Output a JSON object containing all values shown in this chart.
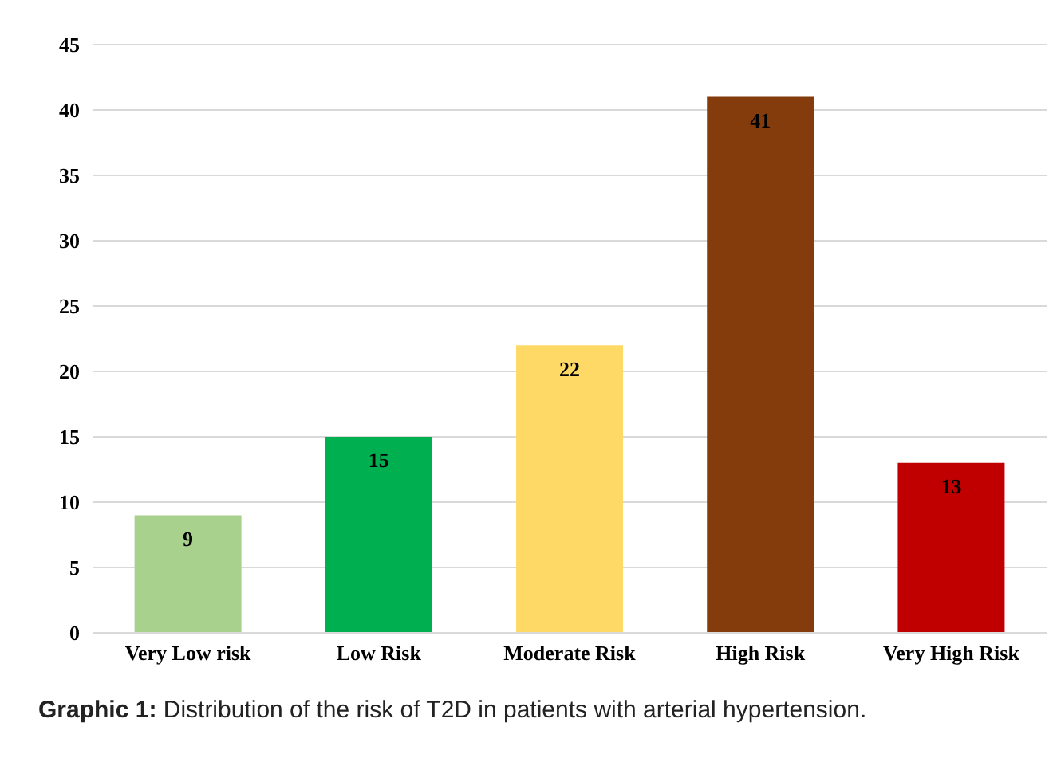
{
  "chart_data": {
    "type": "bar",
    "categories": [
      "Very Low risk",
      "Low Risk",
      "Moderate Risk",
      "High Risk",
      "Very High Risk"
    ],
    "values": [
      9,
      15,
      22,
      41,
      13
    ],
    "colors": [
      "#a9d18e",
      "#00b050",
      "#ffd966",
      "#843c0c",
      "#c00000"
    ],
    "ylim": [
      0,
      45
    ],
    "yticks": [
      0,
      5,
      10,
      15,
      20,
      25,
      30,
      35,
      40,
      45
    ],
    "grid": "y",
    "data_labels": true,
    "annotations": [
      "Graphic 1: Distribution of the risk of T2D in patients with arterial hypertension."
    ]
  }
}
